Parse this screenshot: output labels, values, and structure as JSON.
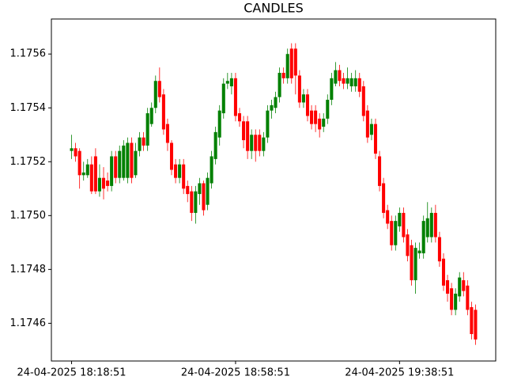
{
  "chart_data": {
    "type": "candlestick",
    "title": "CANDLES",
    "categories": [
      "24-04-2025 18:18:51",
      null,
      null,
      null,
      null,
      null,
      null,
      null,
      null,
      null,
      null,
      null,
      null,
      null,
      null,
      null,
      null,
      null,
      null,
      null,
      null,
      null,
      null,
      null,
      null,
      null,
      null,
      null,
      null,
      null,
      null,
      null,
      null,
      null,
      null,
      null,
      null,
      null,
      null,
      null,
      null,
      "24-04-2025 18:58:51",
      null,
      null,
      null,
      null,
      null,
      null,
      null,
      null,
      null,
      null,
      null,
      null,
      null,
      null,
      null,
      null,
      null,
      null,
      null,
      null,
      null,
      null,
      null,
      null,
      null,
      null,
      null,
      null,
      null,
      null,
      null,
      null,
      null,
      null,
      null,
      null,
      null,
      null,
      null,
      null,
      "24-04-2025 19:38:51",
      null,
      null,
      null,
      null,
      null,
      null,
      null,
      null,
      null,
      null,
      null,
      null,
      null,
      null,
      null,
      null,
      null,
      null,
      null
    ],
    "open": [
      1.17524,
      1.17525,
      1.17524,
      1.17515,
      1.17515,
      1.17519,
      1.17522,
      1.17509,
      1.17514,
      1.17513,
      1.17511,
      1.17522,
      1.17514,
      1.17514,
      1.17514,
      1.17527,
      1.17515,
      1.17524,
      1.17529,
      1.17526,
      1.17534,
      1.1754,
      1.1755,
      1.17545,
      1.17534,
      1.17527,
      1.17519,
      1.17514,
      1.17519,
      1.17511,
      1.17509,
      1.17501,
      1.17508,
      1.17512,
      1.17504,
      1.17512,
      1.17521,
      1.17529,
      1.17538,
      1.17549,
      1.17548,
      1.17551,
      1.17538,
      1.17535,
      1.17535,
      1.17524,
      1.1753,
      1.1753,
      1.17524,
      1.17529,
      1.17539,
      1.1754,
      1.17544,
      1.17553,
      1.17551,
      1.17562,
      1.17562,
      1.17552,
      1.17542,
      1.17545,
      1.17539,
      1.17539,
      1.17536,
      1.17533,
      1.17536,
      1.17543,
      1.17549,
      1.17554,
      1.17551,
      1.17549,
      1.17548,
      1.17548,
      1.17551,
      1.17548,
      1.17539,
      1.1753,
      1.17534,
      1.17522,
      1.17512,
      1.17502,
      1.17498,
      1.17489,
      1.17496,
      1.17501,
      1.17493,
      1.17489,
      1.17476,
      1.17486,
      1.17486,
      1.17492,
      1.17492,
      1.17501,
      1.17492,
      1.17484,
      1.17476,
      1.17473,
      1.17465,
      1.1747,
      1.17476,
      1.17474,
      1.17466,
      1.17465
    ],
    "high": [
      1.1753,
      1.17527,
      1.17525,
      1.1752,
      1.17521,
      1.17522,
      1.17525,
      1.17519,
      1.17518,
      1.17516,
      1.17524,
      1.17524,
      1.17526,
      1.17528,
      1.17529,
      1.17529,
      1.17527,
      1.17531,
      1.17531,
      1.1754,
      1.17542,
      1.17552,
      1.17555,
      1.17547,
      1.17536,
      1.17528,
      1.17521,
      1.17521,
      1.17521,
      1.17513,
      1.17511,
      1.17511,
      1.17514,
      1.17513,
      1.17516,
      1.17524,
      1.17533,
      1.17541,
      1.17551,
      1.17553,
      1.17553,
      1.17553,
      1.1754,
      1.17537,
      1.17537,
      1.17532,
      1.17532,
      1.17532,
      1.17531,
      1.17541,
      1.17543,
      1.17546,
      1.17555,
      1.17555,
      1.17562,
      1.17564,
      1.17564,
      1.17554,
      1.17547,
      1.17547,
      1.17541,
      1.17541,
      1.17538,
      1.17538,
      1.17545,
      1.17553,
      1.17557,
      1.17556,
      1.17553,
      1.17555,
      1.17553,
      1.17554,
      1.17553,
      1.1755,
      1.17541,
      1.17536,
      1.17536,
      1.17524,
      1.17514,
      1.17504,
      1.175,
      1.175,
      1.17503,
      1.17503,
      1.17495,
      1.17491,
      1.1749,
      1.1749,
      1.175,
      1.17505,
      1.17503,
      1.17504,
      1.17494,
      1.17486,
      1.17478,
      1.17475,
      1.17473,
      1.17479,
      1.17479,
      1.17476,
      1.17468,
      1.17467
    ],
    "low": [
      1.17521,
      1.1752,
      1.1751,
      1.17513,
      1.17514,
      1.17508,
      1.17508,
      1.17507,
      1.17506,
      1.17509,
      1.17509,
      1.17512,
      1.17512,
      1.17513,
      1.17512,
      1.17512,
      1.17514,
      1.17522,
      1.17524,
      1.17524,
      1.17533,
      1.17538,
      1.17542,
      1.1753,
      1.17524,
      1.17515,
      1.17512,
      1.17512,
      1.17508,
      1.17505,
      1.17498,
      1.17497,
      1.17504,
      1.175,
      1.17502,
      1.1751,
      1.17519,
      1.17526,
      1.17536,
      1.17547,
      1.17545,
      1.17535,
      1.17533,
      1.17525,
      1.17521,
      1.17521,
      1.1752,
      1.17522,
      1.17522,
      1.17527,
      1.17536,
      1.17538,
      1.17542,
      1.17549,
      1.17549,
      1.17549,
      1.17545,
      1.1754,
      1.1754,
      1.17535,
      1.17532,
      1.17531,
      1.17529,
      1.17531,
      1.17534,
      1.17541,
      1.17548,
      1.17548,
      1.17547,
      1.17547,
      1.17546,
      1.17546,
      1.17544,
      1.17535,
      1.17527,
      1.17528,
      1.17521,
      1.17509,
      1.17499,
      1.17495,
      1.17487,
      1.17487,
      1.17494,
      1.1749,
      1.17483,
      1.17474,
      1.17471,
      1.17484,
      1.17484,
      1.1749,
      1.1749,
      1.1749,
      1.17481,
      1.17472,
      1.17468,
      1.17463,
      1.17463,
      1.17468,
      1.1747,
      1.17463,
      1.17454,
      1.17452
    ],
    "close": [
      1.17525,
      1.17522,
      1.17515,
      1.17516,
      1.17519,
      1.17509,
      1.17509,
      1.17514,
      1.1751,
      1.17511,
      1.17522,
      1.17514,
      1.17524,
      1.17526,
      1.17527,
      1.17514,
      1.17524,
      1.17529,
      1.17526,
      1.17538,
      1.1754,
      1.1755,
      1.17544,
      1.17532,
      1.17527,
      1.17517,
      1.17514,
      1.17519,
      1.1751,
      1.17508,
      1.17501,
      1.17509,
      1.17512,
      1.17502,
      1.17514,
      1.17522,
      1.17531,
      1.17539,
      1.17549,
      1.1755,
      1.17551,
      1.17537,
      1.17535,
      1.17528,
      1.17524,
      1.1753,
      1.17524,
      1.17524,
      1.17529,
      1.17539,
      1.17541,
      1.17544,
      1.17553,
      1.17551,
      1.1756,
      1.17551,
      1.17552,
      1.17542,
      1.17545,
      1.17537,
      1.17534,
      1.17534,
      1.17532,
      1.17536,
      1.17543,
      1.17551,
      1.17554,
      1.1755,
      1.17549,
      1.17551,
      1.17551,
      1.17551,
      1.17546,
      1.17537,
      1.17529,
      1.17534,
      1.17523,
      1.17511,
      1.17501,
      1.17497,
      1.17489,
      1.17498,
      1.17501,
      1.17492,
      1.17485,
      1.17476,
      1.17488,
      1.17487,
      1.17498,
      1.17499,
      1.17501,
      1.17492,
      1.17483,
      1.17474,
      1.17471,
      1.17465,
      1.17471,
      1.17477,
      1.17472,
      1.17465,
      1.17456,
      1.17454
    ],
    "up_color": "#008000",
    "down_color": "#ff0000",
    "ylim": [
      1.17446,
      1.17573
    ],
    "yticks": [
      1.1746,
      1.1748,
      {
        "value": 1.175,
        "label": "1.1750"
      },
      1.1752,
      1.1754,
      1.1756
    ],
    "grid": false
  }
}
